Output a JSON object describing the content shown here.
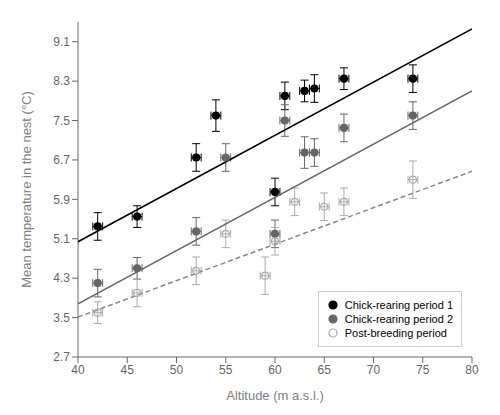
{
  "chart_data": {
    "type": "scatter",
    "title": "",
    "xlabel": "Altitude (m a.s.l.)",
    "ylabel": "Mean temperature in the nest (°C)",
    "xlim": [
      40,
      80
    ],
    "ylim": [
      2.7,
      9.5
    ],
    "xticks": [
      40,
      45,
      50,
      55,
      60,
      65,
      70,
      75,
      80
    ],
    "yticks": [
      2.7,
      3.5,
      4.3,
      5.1,
      5.9,
      6.7,
      7.5,
      8.3,
      9.1
    ],
    "legend": "lower right",
    "grid": false,
    "series": [
      {
        "type": "line",
        "color": "#000000",
        "line_style": "solid",
        "x": [
          40,
          80
        ],
        "values": [
          5.04,
          9.36
        ]
      },
      {
        "type": "line",
        "color": "#666666",
        "line_style": "solid",
        "x": [
          40,
          80
        ],
        "values": [
          3.78,
          8.1
        ]
      },
      {
        "type": "line",
        "color": "#888888",
        "line_style": "dashed",
        "x": [
          40,
          80
        ],
        "values": [
          3.51,
          6.47
        ]
      },
      {
        "type": "scatter",
        "name": "Chick-rearing period 1",
        "color": "#000000",
        "marker": "filled_circle",
        "x": [
          42,
          46,
          52,
          54,
          60,
          61,
          63,
          64,
          67,
          74
        ],
        "values": [
          5.35,
          5.55,
          6.75,
          7.6,
          6.05,
          8.0,
          8.1,
          8.15,
          8.35,
          8.35
        ],
        "yerr": [
          0.28,
          0.22,
          0.28,
          0.32,
          0.28,
          0.28,
          0.22,
          0.28,
          0.22,
          0.28
        ],
        "xerr": [
          0.5,
          0.5,
          0.5,
          0.5,
          0.5,
          0.5,
          0.5,
          0.5,
          0.5,
          0.5
        ]
      },
      {
        "type": "scatter",
        "name": "Chick-rearing period 2",
        "color": "#666666",
        "marker": "filled_circle",
        "x": [
          42,
          46,
          52,
          55,
          60,
          61,
          63,
          64,
          67,
          74
        ],
        "values": [
          4.2,
          4.5,
          5.25,
          6.75,
          5.2,
          7.5,
          6.85,
          6.85,
          7.35,
          7.6
        ],
        "yerr": [
          0.28,
          0.22,
          0.28,
          0.28,
          0.28,
          0.32,
          0.32,
          0.28,
          0.28,
          0.28
        ],
        "xerr": [
          0.5,
          0.5,
          0.5,
          0.5,
          0.5,
          0.5,
          0.5,
          0.5,
          0.5,
          0.5
        ]
      },
      {
        "type": "scatter",
        "name": "Post-breeding period",
        "color": "#aaaaaa",
        "marker": "open_circle",
        "x": [
          42,
          46,
          52,
          55,
          59,
          60,
          62,
          65,
          67,
          74
        ],
        "values": [
          3.6,
          4.0,
          4.45,
          5.2,
          4.35,
          5.05,
          5.85,
          5.75,
          5.85,
          6.3
        ],
        "yerr": [
          0.22,
          0.28,
          0.28,
          0.28,
          0.38,
          0.28,
          0.28,
          0.28,
          0.28,
          0.38
        ],
        "xerr": [
          0.5,
          0.5,
          0.5,
          0.5,
          0.5,
          0.5,
          0.5,
          0.5,
          0.5,
          0.5
        ]
      }
    ]
  }
}
